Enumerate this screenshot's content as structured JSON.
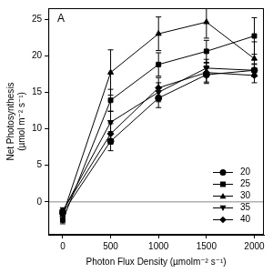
{
  "chart_data": {
    "type": "line",
    "annotations": [
      {
        "text": "A"
      }
    ],
    "xlabel": "Photon Flux Density (µmolm⁻² s⁻¹)",
    "ylabel": [
      "Net Photosynthesis",
      "(µmol m⁻² s⁻¹)"
    ],
    "x": [
      0,
      500,
      1000,
      1500,
      2000
    ],
    "xlim": [
      -150,
      2100
    ],
    "xticks": [
      0,
      500,
      1000,
      1500,
      2000
    ],
    "ylim": [
      -4.5,
      26.5
    ],
    "yticks": [
      0,
      5,
      10,
      15,
      20,
      25
    ],
    "reference_line": 0,
    "grid": false,
    "legend": "bottom right",
    "series": [
      {
        "name": "20",
        "color": "#000000",
        "marker": "circle",
        "line_style": "solid",
        "values": [
          -1.5,
          8.3,
          14.2,
          17.4,
          18.0
        ],
        "errors": [
          0.4,
          1.3,
          1.3,
          1.2,
          0.9
        ]
      },
      {
        "name": "25",
        "color": "#000000",
        "marker": "square",
        "line_style": "solid",
        "values": [
          -2.5,
          13.9,
          18.8,
          20.6,
          22.7
        ],
        "errors": [
          0.5,
          1.5,
          1.6,
          1.5,
          2.5
        ]
      },
      {
        "name": "30",
        "color": "#000000",
        "marker": "triangle-up",
        "line_style": "solid",
        "values": [
          -1.8,
          17.7,
          23.0,
          24.6,
          19.6
        ],
        "errors": [
          0.4,
          3.1,
          2.3,
          2.2,
          2.3
        ]
      },
      {
        "name": "35",
        "color": "#000000",
        "marker": "triangle-down",
        "line_style": "solid",
        "values": [
          -1.3,
          10.9,
          15.0,
          18.3,
          18.0
        ],
        "errors": [
          0.4,
          1.5,
          1.3,
          1.2,
          0.8
        ]
      },
      {
        "name": "40",
        "color": "#000000",
        "marker": "diamond",
        "line_style": "solid",
        "values": [
          -1.2,
          9.3,
          15.6,
          17.7,
          17.3
        ],
        "errors": [
          0.4,
          1.4,
          1.4,
          1.3,
          1.0
        ]
      }
    ]
  }
}
